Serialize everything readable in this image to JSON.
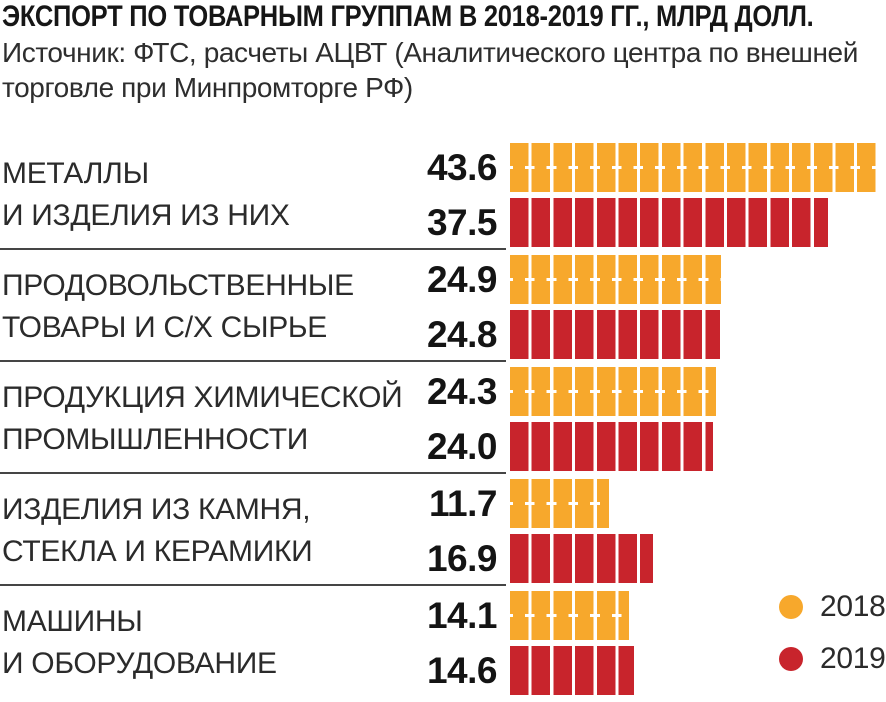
{
  "header": {
    "title": "ЭКСПОРТ ПО ТОВАРНЫМ ГРУППАМ В 2018-2019 ГГ., МЛРД ДОЛЛ.",
    "source_line1": "Источник: ФТС, расчеты АЦВТ (Аналитического центра по внешней",
    "source_line2": "торговле при Минпромторге РФ)"
  },
  "legend": {
    "items": [
      {
        "label": "2018",
        "color": "#F7A82C"
      },
      {
        "label": "2019",
        "color": "#C8242C"
      }
    ]
  },
  "colors": {
    "bar_2018": "#F7A82C",
    "bar_2019": "#C8242C",
    "separator": "#454545",
    "text": "#2b2b2b"
  },
  "chart_data": {
    "type": "bar",
    "orientation": "horizontal",
    "title": "ЭКСПОРТ ПО ТОВАРНЫМ ГРУППАМ В 2018-2019 ГГ., МЛРД ДОЛЛ.",
    "unit": "млрд долл.",
    "xlim": [
      0,
      44.4
    ],
    "grid": false,
    "legend_position": "bottom-right",
    "value_labels": true,
    "bar_style": "segmented-blocks",
    "categories": [
      "МЕТАЛЛЫ И ИЗДЕЛИЯ ИЗ НИХ",
      "ПРОДОВОЛЬСТВЕННЫЕ ТОВАРЫ И С/Х СЫРЬЕ",
      "ПРОДУКЦИЯ ХИМИЧЕСКОЙ ПРОМЫШЛЕННОСТИ",
      "ИЗДЕЛИЯ ИЗ КАМНЯ, СТЕКЛА И КЕРАМИКИ",
      "МАШИНЫ И ОБОРУДОВАНИЕ"
    ],
    "category_label_lines": [
      [
        "МЕТАЛЛЫ",
        "И ИЗДЕЛИЯ ИЗ НИХ"
      ],
      [
        "ПРОДОВОЛЬСТВЕННЫЕ",
        "ТОВАРЫ И С/Х СЫРЬЕ"
      ],
      [
        "ПРОДУКЦИЯ ХИМИЧЕСКОЙ",
        "ПРОМЫШЛЕННОСТИ"
      ],
      [
        "ИЗДЕЛИЯ ИЗ КАМНЯ,",
        "СТЕКЛА И КЕРАМИКИ"
      ],
      [
        "МАШИНЫ",
        "И ОБОРУДОВАНИЕ"
      ]
    ],
    "series": [
      {
        "name": "2018",
        "color": "#F7A82C",
        "values": [
          43.6,
          24.9,
          24.3,
          11.7,
          14.1
        ]
      },
      {
        "name": "2019",
        "color": "#C8242C",
        "values": [
          37.5,
          24.8,
          24.0,
          16.9,
          14.6
        ]
      }
    ]
  }
}
